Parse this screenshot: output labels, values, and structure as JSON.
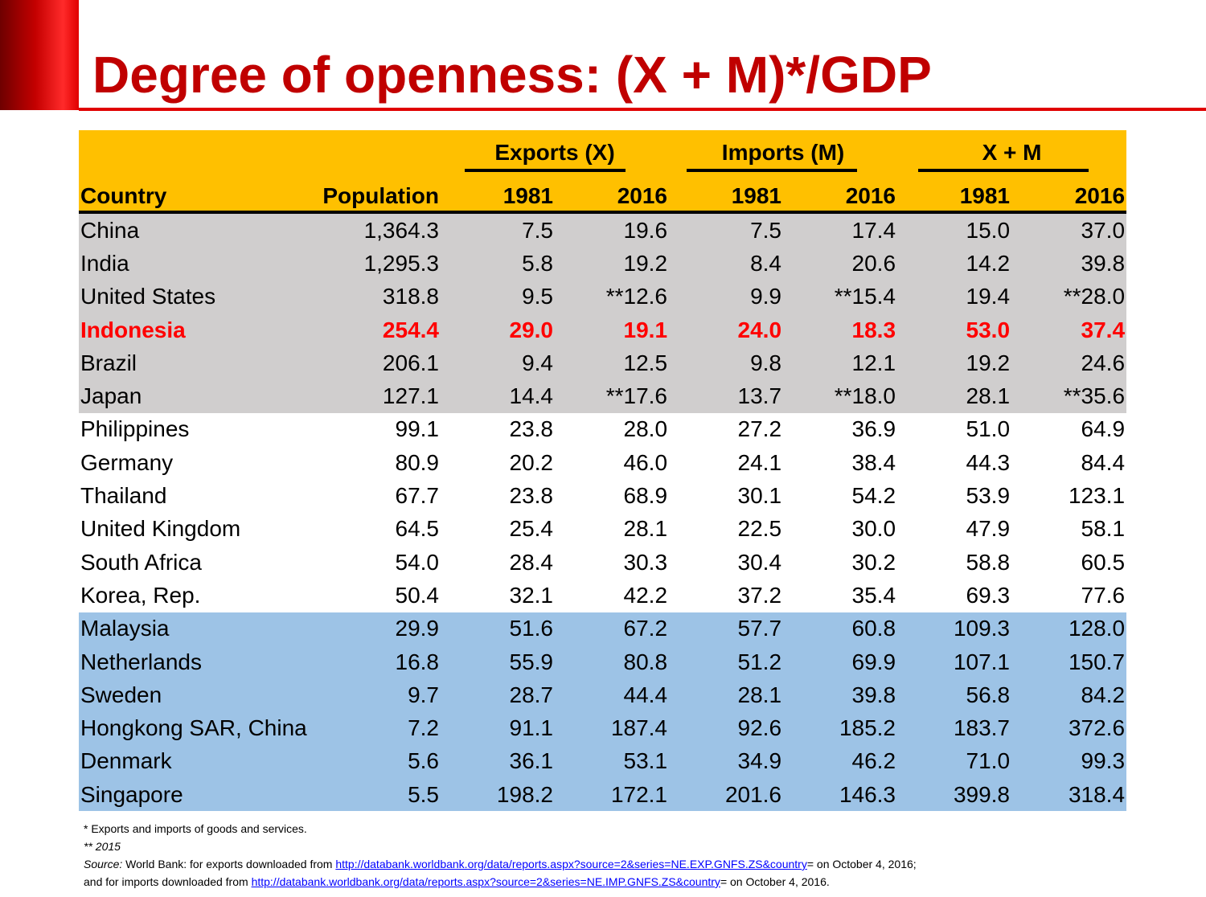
{
  "title": "Degree of openness: (X + M)*/GDP",
  "colors": {
    "accent": "#c00000",
    "header_bg": "#ffc000",
    "gray_bg": "#d0cece",
    "blue_bg": "#9dc3e6",
    "highlight": "#ff0000"
  },
  "table": {
    "groups": {
      "exports": "Exports (X)",
      "imports": "Imports (M)",
      "total": "X + M"
    },
    "columns": {
      "country": "Country",
      "population": "Population",
      "x1981": "1981",
      "x2016": "2016",
      "m1981": "1981",
      "m2016": "2016",
      "t1981": "1981",
      "t2016": "2016"
    },
    "rows": [
      {
        "country": "China",
        "population": "1,364.3",
        "x1981": "7.5",
        "x2016": "19.6",
        "m1981": "7.5",
        "m2016": "17.4",
        "t1981": "15.0",
        "t2016": "37.0"
      },
      {
        "country": "India",
        "population": "1,295.3",
        "x1981": "5.8",
        "x2016": "19.2",
        "m1981": "8.4",
        "m2016": "20.6",
        "t1981": "14.2",
        "t2016": "39.8"
      },
      {
        "country": "United States",
        "population": "318.8",
        "x1981": "9.5",
        "x2016": "**12.6",
        "m1981": "9.9",
        "m2016": "**15.4",
        "t1981": "19.4",
        "t2016": "**28.0"
      },
      {
        "country": "Indonesia",
        "population": "254.4",
        "x1981": "29.0",
        "x2016": "19.1",
        "m1981": "24.0",
        "m2016": "18.3",
        "t1981": "53.0",
        "t2016": "37.4"
      },
      {
        "country": "Brazil",
        "population": "206.1",
        "x1981": "9.4",
        "x2016": "12.5",
        "m1981": "9.8",
        "m2016": "12.1",
        "t1981": "19.2",
        "t2016": "24.6"
      },
      {
        "country": "Japan",
        "population": "127.1",
        "x1981": "14.4",
        "x2016": "**17.6",
        "m1981": "13.7",
        "m2016": "**18.0",
        "t1981": "28.1",
        "t2016": "**35.6"
      },
      {
        "country": "Philippines",
        "population": "99.1",
        "x1981": "23.8",
        "x2016": "28.0",
        "m1981": "27.2",
        "m2016": "36.9",
        "t1981": "51.0",
        "t2016": "64.9"
      },
      {
        "country": "Germany",
        "population": "80.9",
        "x1981": "20.2",
        "x2016": "46.0",
        "m1981": "24.1",
        "m2016": "38.4",
        "t1981": "44.3",
        "t2016": "84.4"
      },
      {
        "country": "Thailand",
        "population": "67.7",
        "x1981": "23.8",
        "x2016": "68.9",
        "m1981": "30.1",
        "m2016": "54.2",
        "t1981": "53.9",
        "t2016": "123.1"
      },
      {
        "country": "United Kingdom",
        "population": "64.5",
        "x1981": "25.4",
        "x2016": "28.1",
        "m1981": "22.5",
        "m2016": "30.0",
        "t1981": "47.9",
        "t2016": "58.1"
      },
      {
        "country": "South Africa",
        "population": "54.0",
        "x1981": "28.4",
        "x2016": "30.3",
        "m1981": "30.4",
        "m2016": "30.2",
        "t1981": "58.8",
        "t2016": "60.5"
      },
      {
        "country": "Korea, Rep.",
        "population": "50.4",
        "x1981": "32.1",
        "x2016": "42.2",
        "m1981": "37.2",
        "m2016": "35.4",
        "t1981": "69.3",
        "t2016": "77.6"
      },
      {
        "country": "Malaysia",
        "population": "29.9",
        "x1981": "51.6",
        "x2016": "67.2",
        "m1981": "57.7",
        "m2016": "60.8",
        "t1981": "109.3",
        "t2016": "128.0"
      },
      {
        "country": "Netherlands",
        "population": "16.8",
        "x1981": "55.9",
        "x2016": "80.8",
        "m1981": "51.2",
        "m2016": "69.9",
        "t1981": "107.1",
        "t2016": "150.7"
      },
      {
        "country": "Sweden",
        "population": "9.7",
        "x1981": "28.7",
        "x2016": "44.4",
        "m1981": "28.1",
        "m2016": "39.8",
        "t1981": "56.8",
        "t2016": "84.2"
      },
      {
        "country": "Hongkong SAR, China",
        "population": "7.2",
        "x1981": "91.1",
        "x2016": "187.4",
        "m1981": "92.6",
        "m2016": "185.2",
        "t1981": "183.7",
        "t2016": "372.6"
      },
      {
        "country": "Denmark",
        "population": "5.6",
        "x1981": "36.1",
        "x2016": "53.1",
        "m1981": "34.9",
        "m2016": "46.2",
        "t1981": "71.0",
        "t2016": "99.3"
      },
      {
        "country": "Singapore",
        "population": "5.5",
        "x1981": "198.2",
        "x2016": "172.1",
        "m1981": "201.6",
        "m2016": "146.3",
        "t1981": "399.8",
        "t2016": "318.4"
      }
    ]
  },
  "footnotes": {
    "note1": "* Exports and imports of goods and services.",
    "note2": "** 2015",
    "source_label": "Source:",
    "source_text1": " World Bank: for exports downloaded from ",
    "link1": "http://databank.worldbank.org/data/reports.aspx?source=2&series=NE.EXP.GNFS.ZS&country",
    "source_text2": "= on October 4, 2016;",
    "source_text3": "and for imports downloaded from ",
    "link2": "http://databank.worldbank.org/data/reports.aspx?source=2&series=NE.IMP.GNFS.ZS&country",
    "source_text4": "= on October 4, 2016."
  }
}
